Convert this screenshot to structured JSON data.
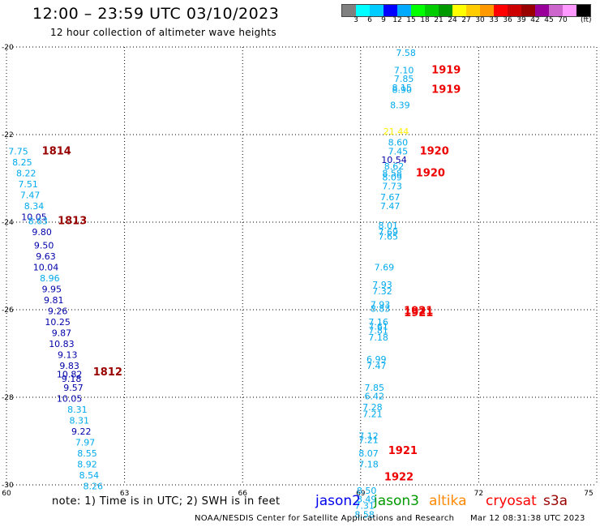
{
  "header": {
    "title": "12:00 – 23:59 UTC 03/10/2023",
    "subtitle": "12 hour collection of altimeter wave heights"
  },
  "scale": {
    "labels": [
      "3",
      "6",
      "9",
      "12",
      "15",
      "18",
      "21",
      "24",
      "27",
      "30",
      "33",
      "36",
      "39",
      "42",
      "45",
      "70"
    ],
    "unit": "(ft)",
    "colors": [
      "#808080",
      "#00ffff",
      "#00ccff",
      "#0000ff",
      "#00aaff",
      "#00ff00",
      "#00cc00",
      "#009900",
      "#ffff00",
      "#ffcc00",
      "#ff9900",
      "#ff0000",
      "#cc0000",
      "#990000",
      "#990099",
      "#cc66cc",
      "#ff99ff",
      "#000000"
    ]
  },
  "footer": {
    "note": "note: 1) Time is in UTC; 2) SWH is in feet",
    "credits": "NOAA/NESDIS Center for Satellite Applications and Research",
    "timestamp": "Mar 12 08:31:38 UTC 2023"
  },
  "legend": [
    {
      "name": "jason2",
      "color": "#0000ee"
    },
    {
      "name": "jason3",
      "color": "#009900"
    },
    {
      "name": "altika",
      "color": "#ff8800"
    },
    {
      "name": "cryosat",
      "color": "#ff0000"
    },
    {
      "name": "s3a",
      "color": "#990000"
    }
  ],
  "chart_data": {
    "type": "scatter",
    "title": "12:00 – 23:59 UTC 03/10/2023",
    "subtitle": "12 hour collection of altimeter wave heights",
    "xlim": [
      60,
      75
    ],
    "ylim": [
      -30,
      -20
    ],
    "x_ticks": [
      "60",
      "63",
      "66",
      "69",
      "72",
      "75"
    ],
    "y_ticks": [
      "-20",
      "-22",
      "-24",
      "-26",
      "-28",
      "-30"
    ],
    "grid": true,
    "colors": {
      "light_blue": "#00aaee",
      "dark_blue": "#0000aa",
      "yellow": "#ffee00",
      "red": "#ee0000",
      "dark_red": "#990000"
    },
    "track_times": [
      {
        "label": "1814",
        "x": 60.9,
        "y": -22.45,
        "color": "dark_red"
      },
      {
        "label": "1813",
        "x": 61.3,
        "y": -24.05,
        "color": "dark_red"
      },
      {
        "label": "1812",
        "x": 62.2,
        "y": -27.5,
        "color": "dark_red"
      },
      {
        "label": "1919",
        "x": 70.8,
        "y": -20.6,
        "color": "red"
      },
      {
        "label": "1919",
        "x": 70.8,
        "y": -21.05,
        "color": "red"
      },
      {
        "label": "1920",
        "x": 70.5,
        "y": -22.45,
        "color": "red"
      },
      {
        "label": "1920",
        "x": 70.4,
        "y": -22.95,
        "color": "red"
      },
      {
        "label": "1921",
        "x": 70.1,
        "y": -26.1,
        "color": "red"
      },
      {
        "label": "1921",
        "x": 70.1,
        "y": -26.15,
        "color": "red"
      },
      {
        "label": "1921",
        "x": 69.7,
        "y": -29.3,
        "color": "red"
      },
      {
        "label": "1922",
        "x": 69.6,
        "y": -29.9,
        "color": "red"
      }
    ],
    "series": [
      {
        "name": "",
        "points": [
          {
            "x": 60.3,
            "y": -22.45,
            "v": "7.75",
            "c": "light_blue"
          },
          {
            "x": 60.4,
            "y": -22.7,
            "v": "8.25",
            "c": "light_blue"
          },
          {
            "x": 60.5,
            "y": -22.95,
            "v": "8.22",
            "c": "light_blue"
          },
          {
            "x": 60.55,
            "y": -23.2,
            "v": "7.51",
            "c": "light_blue"
          },
          {
            "x": 60.6,
            "y": -23.45,
            "v": "7.47",
            "c": "light_blue"
          },
          {
            "x": 60.7,
            "y": -23.7,
            "v": "8.34",
            "c": "light_blue"
          },
          {
            "x": 60.7,
            "y": -23.95,
            "v": "10.05",
            "c": "dark_blue"
          },
          {
            "x": 60.8,
            "y": -24.05,
            "v": "8.63",
            "c": "light_blue"
          },
          {
            "x": 60.9,
            "y": -24.3,
            "v": "9.80",
            "c": "dark_blue"
          },
          {
            "x": 60.95,
            "y": -24.6,
            "v": "9.50",
            "c": "dark_blue"
          },
          {
            "x": 61.0,
            "y": -24.85,
            "v": "9.63",
            "c": "dark_blue"
          },
          {
            "x": 61.0,
            "y": -25.1,
            "v": "10.04",
            "c": "dark_blue"
          },
          {
            "x": 61.1,
            "y": -25.35,
            "v": "8.96",
            "c": "light_blue"
          },
          {
            "x": 61.15,
            "y": -25.6,
            "v": "9.95",
            "c": "dark_blue"
          },
          {
            "x": 61.2,
            "y": -25.85,
            "v": "9.81",
            "c": "dark_blue"
          },
          {
            "x": 61.3,
            "y": -26.1,
            "v": "9.26",
            "c": "dark_blue"
          },
          {
            "x": 61.3,
            "y": -26.35,
            "v": "10.25",
            "c": "dark_blue"
          },
          {
            "x": 61.4,
            "y": -26.6,
            "v": "9.87",
            "c": "dark_blue"
          },
          {
            "x": 61.4,
            "y": -26.85,
            "v": "10.83",
            "c": "dark_blue"
          },
          {
            "x": 61.55,
            "y": -27.1,
            "v": "9.13",
            "c": "dark_blue"
          },
          {
            "x": 61.6,
            "y": -27.35,
            "v": "9.83",
            "c": "dark_blue"
          },
          {
            "x": 61.6,
            "y": -27.55,
            "v": "10.82",
            "c": "dark_blue"
          },
          {
            "x": 61.65,
            "y": -27.65,
            "v": "9.18",
            "c": "dark_blue"
          },
          {
            "x": 61.7,
            "y": -27.85,
            "v": "9.57",
            "c": "dark_blue"
          },
          {
            "x": 61.6,
            "y": -28.1,
            "v": "10.05",
            "c": "dark_blue"
          },
          {
            "x": 61.8,
            "y": -28.35,
            "v": "8.31",
            "c": "light_blue"
          },
          {
            "x": 61.85,
            "y": -28.6,
            "v": "8.31",
            "c": "light_blue"
          },
          {
            "x": 61.9,
            "y": -28.85,
            "v": "9.22",
            "c": "dark_blue"
          },
          {
            "x": 62.0,
            "y": -29.1,
            "v": "7.97",
            "c": "light_blue"
          },
          {
            "x": 62.05,
            "y": -29.35,
            "v": "8.55",
            "c": "light_blue"
          },
          {
            "x": 62.05,
            "y": -29.6,
            "v": "8.92",
            "c": "light_blue"
          },
          {
            "x": 62.1,
            "y": -29.85,
            "v": "8.54",
            "c": "light_blue"
          },
          {
            "x": 62.2,
            "y": -30.1,
            "v": "8.26",
            "c": "light_blue"
          },
          {
            "x": 70.15,
            "y": -20.2,
            "v": "7.58",
            "c": "light_blue"
          },
          {
            "x": 70.1,
            "y": -20.6,
            "v": "7.10",
            "c": "light_blue"
          },
          {
            "x": 70.1,
            "y": -20.8,
            "v": "7.85",
            "c": "light_blue"
          },
          {
            "x": 70.05,
            "y": -21.0,
            "v": "8.15",
            "c": "light_blue"
          },
          {
            "x": 70.05,
            "y": -21.05,
            "v": "8.90",
            "c": "light_blue"
          },
          {
            "x": 70.0,
            "y": -21.4,
            "v": "8.39",
            "c": "light_blue"
          },
          {
            "x": 69.9,
            "y": -22.0,
            "v": "21.44",
            "c": "yellow"
          },
          {
            "x": 69.95,
            "y": -22.25,
            "v": "8.60",
            "c": "light_blue"
          },
          {
            "x": 69.95,
            "y": -22.45,
            "v": "7.45",
            "c": "light_blue"
          },
          {
            "x": 69.85,
            "y": -22.65,
            "v": "10.54",
            "c": "dark_blue"
          },
          {
            "x": 69.85,
            "y": -22.8,
            "v": "8.62",
            "c": "light_blue"
          },
          {
            "x": 69.8,
            "y": -22.95,
            "v": "8.58",
            "c": "light_blue"
          },
          {
            "x": 69.8,
            "y": -23.05,
            "v": "8.09",
            "c": "light_blue"
          },
          {
            "x": 69.8,
            "y": -23.25,
            "v": "7.73",
            "c": "light_blue"
          },
          {
            "x": 69.75,
            "y": -23.5,
            "v": "7.67",
            "c": "light_blue"
          },
          {
            "x": 69.75,
            "y": -23.7,
            "v": "7.47",
            "c": "light_blue"
          },
          {
            "x": 69.7,
            "y": -24.15,
            "v": "8.01",
            "c": "light_blue"
          },
          {
            "x": 69.7,
            "y": -24.3,
            "v": "7.69",
            "c": "light_blue"
          },
          {
            "x": 69.7,
            "y": -24.4,
            "v": "7.65",
            "c": "light_blue"
          },
          {
            "x": 69.6,
            "y": -25.1,
            "v": "7.69",
            "c": "light_blue"
          },
          {
            "x": 69.55,
            "y": -25.5,
            "v": "7.93",
            "c": "light_blue"
          },
          {
            "x": 69.55,
            "y": -25.65,
            "v": "7.32",
            "c": "light_blue"
          },
          {
            "x": 69.5,
            "y": -25.95,
            "v": "7.93",
            "c": "light_blue"
          },
          {
            "x": 69.5,
            "y": -26.05,
            "v": "8.83",
            "c": "light_blue"
          },
          {
            "x": 69.45,
            "y": -26.35,
            "v": "7.16",
            "c": "light_blue"
          },
          {
            "x": 69.45,
            "y": -26.45,
            "v": "7.61",
            "c": "light_blue"
          },
          {
            "x": 69.45,
            "y": -26.55,
            "v": "7.81",
            "c": "light_blue"
          },
          {
            "x": 69.45,
            "y": -26.7,
            "v": "7.18",
            "c": "light_blue"
          },
          {
            "x": 69.4,
            "y": -27.2,
            "v": "6.99",
            "c": "light_blue"
          },
          {
            "x": 69.4,
            "y": -27.35,
            "v": "7.47",
            "c": "light_blue"
          },
          {
            "x": 69.35,
            "y": -27.85,
            "v": "7.85",
            "c": "light_blue"
          },
          {
            "x": 69.35,
            "y": -28.05,
            "v": "6.42",
            "c": "light_blue"
          },
          {
            "x": 69.3,
            "y": -28.3,
            "v": "7.28",
            "c": "light_blue"
          },
          {
            "x": 69.3,
            "y": -28.45,
            "v": "7.21",
            "c": "light_blue"
          },
          {
            "x": 69.2,
            "y": -28.95,
            "v": "7.12",
            "c": "light_blue"
          },
          {
            "x": 69.2,
            "y": -29.05,
            "v": "7.21",
            "c": "light_blue"
          },
          {
            "x": 69.2,
            "y": -29.35,
            "v": "8.07",
            "c": "light_blue"
          },
          {
            "x": 69.2,
            "y": -29.6,
            "v": "7.18",
            "c": "light_blue"
          },
          {
            "x": 69.15,
            "y": -30.2,
            "v": "8.50",
            "c": "light_blue"
          },
          {
            "x": 69.15,
            "y": -30.4,
            "v": "8.49",
            "c": "light_blue"
          },
          {
            "x": 69.1,
            "y": -30.55,
            "v": "7.31",
            "c": "light_blue"
          },
          {
            "x": 69.1,
            "y": -30.75,
            "v": "8.58",
            "c": "light_blue"
          }
        ]
      }
    ]
  }
}
